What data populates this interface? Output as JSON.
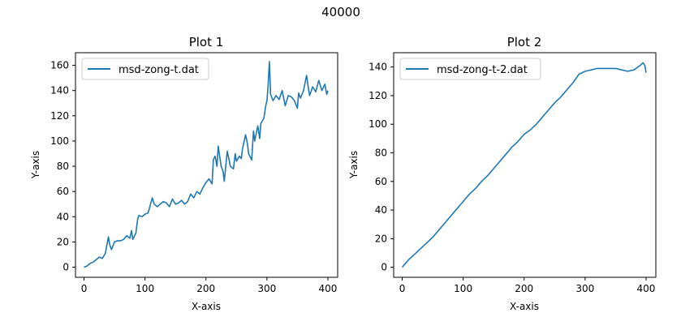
{
  "figure": {
    "suptitle": "40000"
  },
  "chart_data": [
    {
      "type": "line",
      "title": "Plot 1",
      "xlabel": "X-axis",
      "ylabel": "Y-axis",
      "xlim": [
        -14,
        416
      ],
      "ylim": [
        -8,
        170
      ],
      "xticks": [
        0,
        100,
        200,
        300,
        400
      ],
      "yticks": [
        0,
        20,
        40,
        60,
        80,
        100,
        120,
        140,
        160
      ],
      "grid": false,
      "legend_position": "top-left",
      "series": [
        {
          "name": "msd-zong-t.dat",
          "color": "#1f77b4",
          "x": [
            0,
            5,
            10,
            15,
            20,
            25,
            30,
            35,
            40,
            42,
            45,
            50,
            55,
            60,
            65,
            70,
            75,
            78,
            80,
            85,
            88,
            90,
            95,
            100,
            105,
            108,
            112,
            115,
            120,
            125,
            130,
            135,
            140,
            145,
            150,
            155,
            160,
            165,
            170,
            175,
            180,
            185,
            190,
            195,
            200,
            205,
            210,
            212,
            215,
            218,
            220,
            225,
            228,
            230,
            235,
            238,
            240,
            245,
            248,
            250,
            255,
            258,
            260,
            265,
            268,
            270,
            275,
            278,
            280,
            285,
            288,
            290,
            295,
            298,
            300,
            302,
            304,
            306,
            310,
            315,
            320,
            325,
            330,
            335,
            340,
            345,
            350,
            352,
            355,
            360,
            365,
            368,
            370,
            375,
            380,
            385,
            390,
            395,
            398,
            400
          ],
          "y": [
            0,
            1,
            3,
            4,
            6,
            8,
            7,
            11,
            24,
            18,
            14,
            20,
            21,
            21,
            22,
            25,
            23,
            29,
            22,
            27,
            38,
            41,
            40,
            42,
            43,
            48,
            55,
            50,
            48,
            50,
            52,
            51,
            48,
            54,
            50,
            51,
            53,
            50,
            52,
            58,
            55,
            60,
            58,
            63,
            67,
            70,
            66,
            85,
            88,
            80,
            96,
            80,
            76,
            68,
            92,
            85,
            80,
            78,
            90,
            84,
            88,
            86,
            94,
            105,
            98,
            90,
            85,
            108,
            100,
            112,
            102,
            114,
            118,
            128,
            132,
            145,
            163,
            137,
            132,
            136,
            133,
            140,
            128,
            136,
            135,
            132,
            126,
            138,
            134,
            140,
            152,
            142,
            136,
            143,
            139,
            148,
            140,
            145,
            137,
            140
          ]
        }
      ]
    },
    {
      "type": "line",
      "title": "Plot 2",
      "xlabel": "X-axis",
      "ylabel": "Y-axis",
      "xlim": [
        -14,
        416
      ],
      "ylim": [
        -7,
        150
      ],
      "xticks": [
        0,
        100,
        200,
        300,
        400
      ],
      "yticks": [
        0,
        20,
        40,
        60,
        80,
        100,
        120,
        140
      ],
      "grid": false,
      "legend_position": "top-left",
      "series": [
        {
          "name": "msd-zong-t-2.dat",
          "color": "#1f77b4",
          "x": [
            0,
            10,
            20,
            30,
            40,
            50,
            60,
            70,
            80,
            90,
            100,
            110,
            120,
            130,
            140,
            150,
            160,
            170,
            180,
            190,
            200,
            210,
            220,
            230,
            240,
            250,
            260,
            270,
            280,
            290,
            300,
            310,
            320,
            330,
            340,
            350,
            360,
            370,
            380,
            390,
            395,
            398,
            400
          ],
          "y": [
            0,
            5,
            9,
            13,
            17,
            21,
            26,
            31,
            36,
            41,
            46,
            51,
            55,
            60,
            64,
            69,
            74,
            79,
            84,
            88,
            93,
            96,
            100,
            105,
            110,
            115,
            119,
            124,
            129,
            135,
            137,
            138,
            139,
            139,
            139,
            139,
            138,
            137,
            138,
            141,
            143,
            141,
            136
          ]
        }
      ]
    }
  ]
}
